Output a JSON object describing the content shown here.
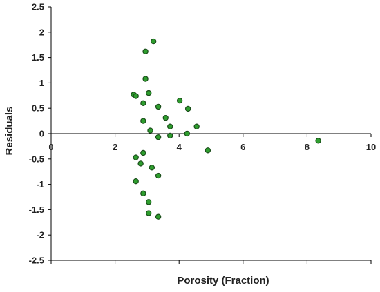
{
  "chart_data": {
    "type": "scatter",
    "title": "",
    "xlabel": "Porosity (Fraction)",
    "ylabel": "Residuals",
    "xlim": [
      0,
      10
    ],
    "ylim": [
      -2.5,
      2.5
    ],
    "xticks": [
      0,
      2,
      4,
      6,
      8,
      10
    ],
    "yticks": [
      2.5,
      2,
      1.5,
      1,
      0.5,
      0,
      -0.5,
      -1,
      -1.5,
      -2,
      -2.5
    ],
    "xtick_labels": [
      "0",
      "2",
      "4",
      "6",
      "8",
      "10"
    ],
    "ytick_labels": [
      "2.5",
      "2",
      "1.5",
      "1",
      "0.5",
      "0",
      "-0.5",
      "-1",
      "-1.5",
      "-2",
      "-2.5"
    ],
    "grid": false,
    "legend": "none",
    "marker_color": "#2e9e2e",
    "marker_edge_color": "#1a4d1a",
    "series": [
      {
        "points": [
          [
            3.2,
            1.82
          ],
          [
            2.95,
            1.62
          ],
          [
            2.95,
            1.08
          ],
          [
            3.05,
            0.8
          ],
          [
            2.58,
            0.77
          ],
          [
            2.65,
            0.74
          ],
          [
            2.88,
            0.6
          ],
          [
            3.35,
            0.53
          ],
          [
            4.02,
            0.65
          ],
          [
            4.28,
            0.49
          ],
          [
            3.58,
            0.31
          ],
          [
            2.88,
            0.25
          ],
          [
            3.72,
            0.14
          ],
          [
            4.55,
            0.14
          ],
          [
            3.1,
            0.06
          ],
          [
            4.25,
            0.0
          ],
          [
            3.72,
            -0.04
          ],
          [
            3.35,
            -0.07
          ],
          [
            8.35,
            -0.14
          ],
          [
            4.9,
            -0.33
          ],
          [
            2.88,
            -0.38
          ],
          [
            2.65,
            -0.47
          ],
          [
            2.8,
            -0.59
          ],
          [
            3.15,
            -0.67
          ],
          [
            3.35,
            -0.83
          ],
          [
            2.65,
            -0.94
          ],
          [
            2.88,
            -1.18
          ],
          [
            3.05,
            -1.35
          ],
          [
            3.05,
            -1.57
          ],
          [
            3.35,
            -1.64
          ]
        ]
      }
    ]
  }
}
